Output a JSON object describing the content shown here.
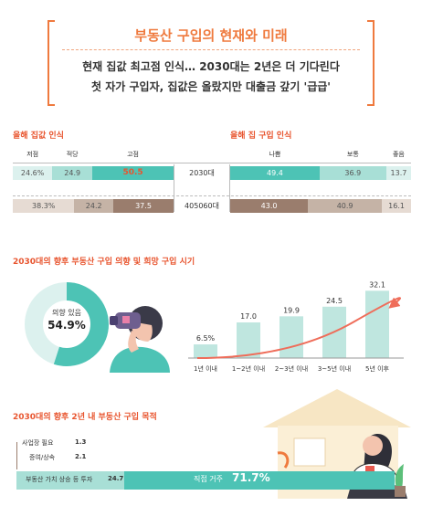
{
  "header": {
    "title": "부동산 구입의 현재와 미래",
    "line1": "현재 집값 최고점 인식… 2030대는 2년은 더 기다린다",
    "line2": "첫 자가 구입자, 집값은 올랐지만 대출금 갚기 '급급'"
  },
  "colors": {
    "accent": "#ef7a3e",
    "section": "#e8552f",
    "teal": "#4dc3b5",
    "teal_light": "#a8dfd6",
    "teal_pale": "#dcf1ee",
    "brown": "#9a7d6d",
    "brown_light": "#c5b3a6",
    "brown_pale": "#e6dbd3",
    "dark": "#4a3f3a"
  },
  "chart_data": [
    {
      "type": "bar",
      "orientation": "horizontal-stacked",
      "title": "올해 집값 인식",
      "categories": [
        "2030대",
        "405060대"
      ],
      "series": [
        {
          "name": "저점",
          "values": [
            24.6,
            38.3
          ]
        },
        {
          "name": "적당",
          "values": [
            24.9,
            24.2
          ]
        },
        {
          "name": "고점",
          "values": [
            50.5,
            37.5
          ]
        }
      ],
      "value_labels": [
        [
          "24.6%",
          "24.9",
          "50.5"
        ],
        [
          "38.3%",
          "24.2",
          "37.5"
        ]
      ]
    },
    {
      "type": "bar",
      "orientation": "horizontal-stacked",
      "title": "올해 집 구입 인식",
      "categories": [
        "2030대",
        "405060대"
      ],
      "series": [
        {
          "name": "나쁨",
          "values": [
            49.4,
            43.0
          ]
        },
        {
          "name": "보통",
          "values": [
            36.9,
            40.9
          ]
        },
        {
          "name": "좋음",
          "values": [
            13.7,
            16.1
          ]
        }
      ],
      "value_labels": [
        [
          "49.4",
          "36.9",
          "13.7"
        ],
        [
          "43.0",
          "40.9",
          "16.1"
        ]
      ]
    },
    {
      "type": "pie",
      "title": "2030대의 향후 부동산 구입 의향 및 희망 구입 시기",
      "label": "의향 있음",
      "value": 54.9,
      "value_label": "54.9%"
    },
    {
      "type": "bar",
      "categories": [
        "1년 이내",
        "1~2년 이내",
        "2~3년 이내",
        "3~5년 이내",
        "5년 이후"
      ],
      "values": [
        6.5,
        17.0,
        19.9,
        24.5,
        32.1
      ],
      "value_labels": [
        "6.5%",
        "17.0",
        "19.9",
        "24.5",
        "32.1"
      ],
      "ylim": [
        0,
        34
      ]
    },
    {
      "type": "bar",
      "orientation": "horizontal",
      "title": "2030대의 향후 2년 내 부동산 구입 목적",
      "categories": [
        "사업장 필요",
        "증여/상속",
        "부동산 가치 상승 등 투자",
        "직접 거주"
      ],
      "values": [
        1.3,
        2.1,
        24.7,
        71.7
      ],
      "value_labels": [
        "1.3",
        "2.1",
        "24.7",
        "71.7%"
      ]
    }
  ]
}
